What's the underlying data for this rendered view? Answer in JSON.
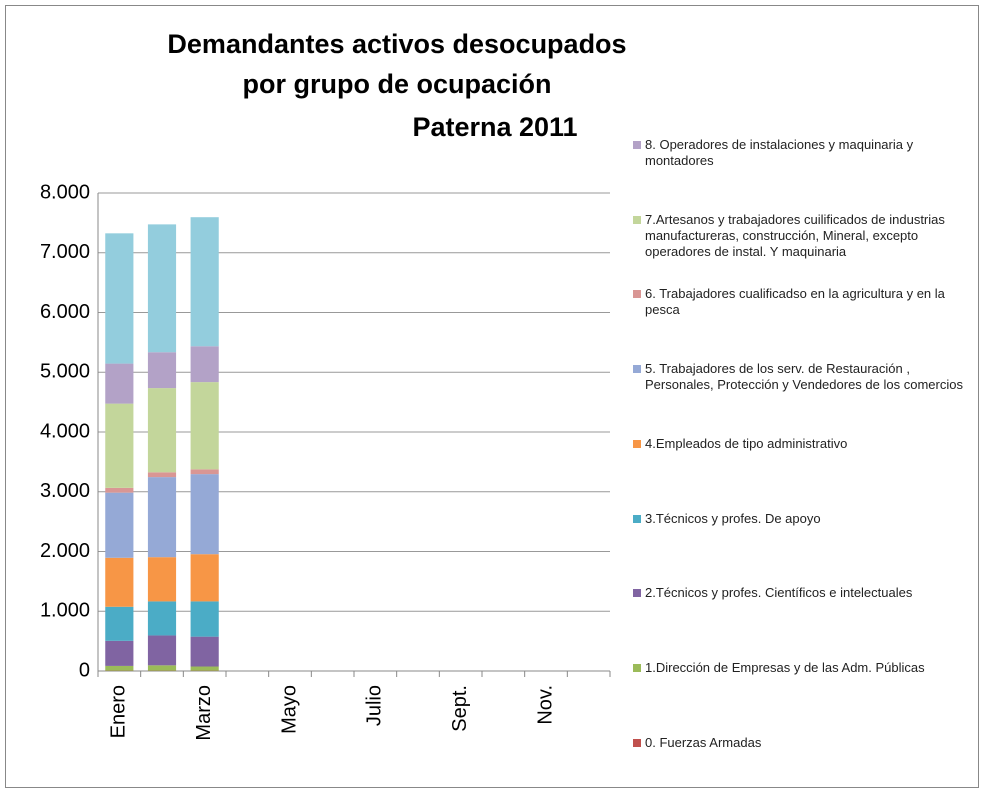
{
  "chart_data": {
    "type": "stacked_bar",
    "title": [
      "Demandantes activos desocupados",
      "por grupo de ocupación",
      "Paterna 2011"
    ],
    "categories": [
      "Enero",
      null,
      "Marzo",
      null,
      "Mayo",
      null,
      "Julio",
      null,
      "Sept.",
      null,
      "Nov.",
      null
    ],
    "ylim": [
      0,
      8000
    ],
    "yticks": [
      0,
      {
        "value": 1000,
        "label": "1.000"
      },
      {
        "value": 2000,
        "label": "2.000"
      },
      {
        "value": 3000,
        "label": "3.000"
      },
      {
        "value": 4000,
        "label": "4.000"
      },
      {
        "value": 5000,
        "label": "5.000"
      },
      {
        "value": 6000,
        "label": "6.000"
      },
      {
        "value": 7000,
        "label": "7.000"
      },
      {
        "value": 8000,
        "label": "8.000"
      }
    ],
    "grid": true,
    "legend": "right",
    "series": [
      {
        "name": "0. Fuerzas Armadas",
        "color": "#c0504d",
        "values": [
          5,
          5,
          5,
          null,
          null,
          null,
          null,
          null,
          null,
          null,
          null,
          null
        ]
      },
      {
        "name": "1.Dirección de Empresas y de las Adm. Públicas",
        "color": "#9bbb59",
        "values": [
          80,
          90,
          70,
          null,
          null,
          null,
          null,
          null,
          null,
          null,
          null,
          null
        ]
      },
      {
        "name": "2.Técnicos y profes. Científicos e intelectuales",
        "color": "#8064a2",
        "values": [
          420,
          500,
          500,
          null,
          null,
          null,
          null,
          null,
          null,
          null,
          null,
          null
        ]
      },
      {
        "name": "3.Técnicos y profes. De apoyo",
        "color": "#4bacc6",
        "values": [
          570,
          570,
          590,
          null,
          null,
          null,
          null,
          null,
          null,
          null,
          null,
          null
        ]
      },
      {
        "name": "4.Empleados de tipo administrativo",
        "color": "#f79646",
        "values": [
          820,
          740,
          790,
          null,
          null,
          null,
          null,
          null,
          null,
          null,
          null,
          null
        ]
      },
      {
        "name": "5. Trabajadores de los serv. de Restauración , Personales, Protección y Vendedores de los comercios",
        "color": "#95a9d6",
        "values": [
          1090,
          1340,
          1340,
          null,
          null,
          null,
          null,
          null,
          null,
          null,
          null,
          null
        ]
      },
      {
        "name": "6. Trabajadores cualificadso en la agricultura y en la pesca",
        "color": "#d99694",
        "values": [
          80,
          80,
          80,
          null,
          null,
          null,
          null,
          null,
          null,
          null,
          null,
          null
        ]
      },
      {
        "name": "7.Artesanos y trabajadores cuilificados de industrias manufactureras, construcción, Mineral, excepto operadores de instal. Y maquinaria",
        "color": "#c3d69b",
        "values": [
          1410,
          1410,
          1460,
          null,
          null,
          null,
          null,
          null,
          null,
          null,
          null,
          null
        ]
      },
      {
        "name": "8. Operadores de instalaciones y maquinaria y montadores",
        "color": "#b3a2c7",
        "values": [
          670,
          600,
          600,
          null,
          null,
          null,
          null,
          null,
          null,
          null,
          null,
          null
        ]
      },
      {
        "color": "#93cddd",
        "values": [
          2180,
          2140,
          2160,
          null,
          null,
          null,
          null,
          null,
          null,
          null,
          null,
          null
        ]
      }
    ]
  }
}
